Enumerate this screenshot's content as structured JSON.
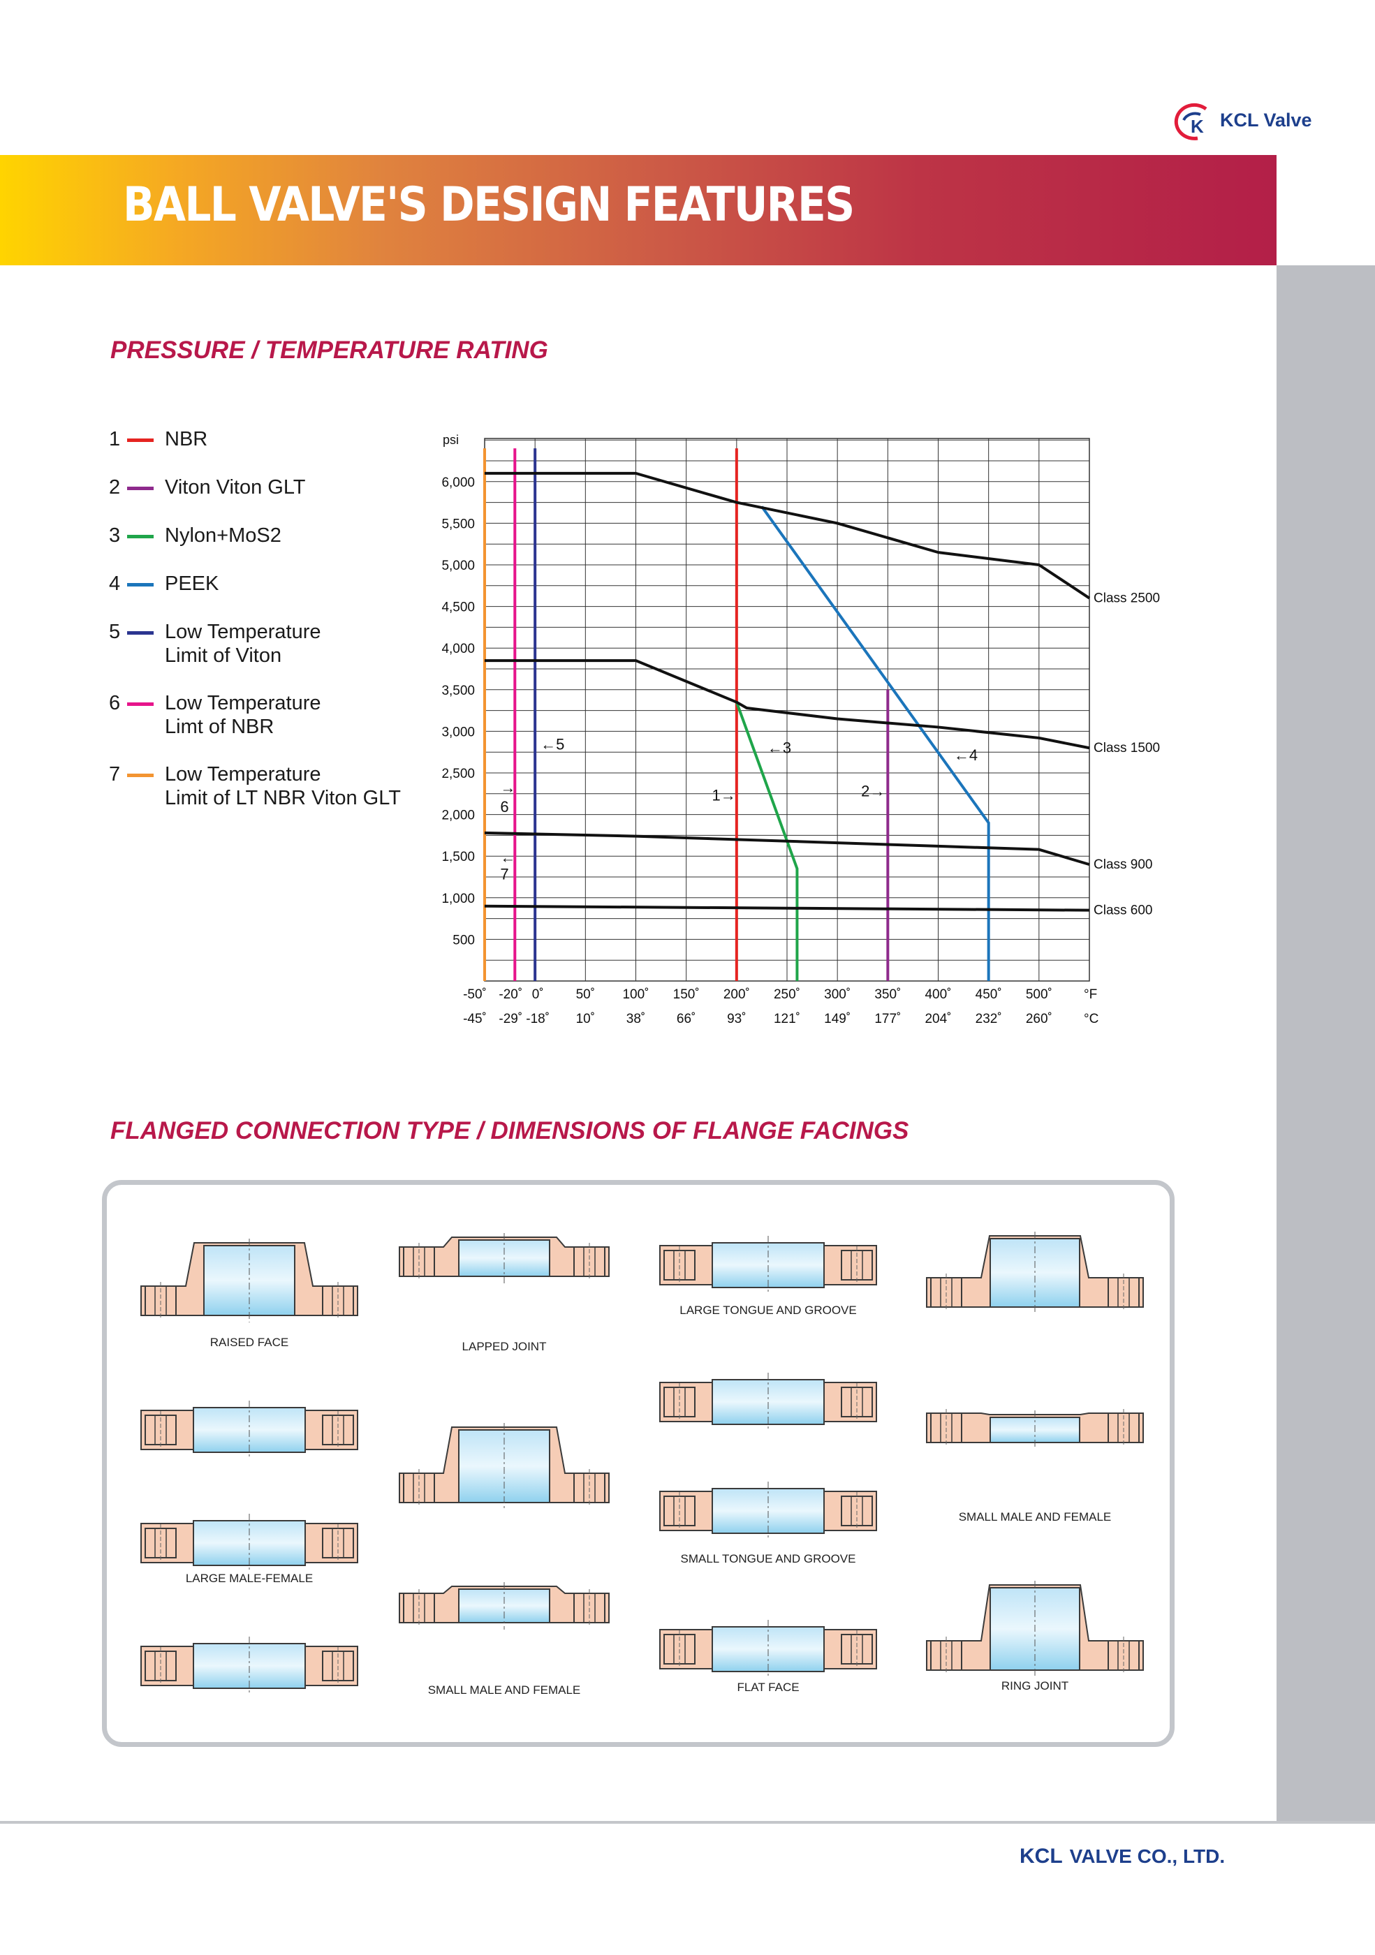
{
  "brand": {
    "logo_text": "KCL Valve",
    "footer_kcl": "KCL",
    "footer_rest": "VALVE CO., LTD."
  },
  "colors": {
    "brand_blue": "#1d3f8c",
    "title_red": "#b8184a",
    "nbr": "#e52421",
    "viton": "#8e2a8c",
    "nylon": "#1fa54a",
    "peek": "#1b75bb",
    "viton_low": "#2b3590",
    "nbr_low": "#e6148b",
    "lt_nbr_low": "#f39431"
  },
  "header": {
    "title": "BALL VALVE'S DESIGN FEATURES"
  },
  "sections": {
    "pressure_title": "PRESSURE / TEMPERATURE RATING",
    "flange_title": "FLANGED CONNECTION TYPE / DIMENSIONS OF FLANGE FACINGS"
  },
  "legend": [
    {
      "num": "1",
      "label": "NBR",
      "color_key": "nbr"
    },
    {
      "num": "2",
      "label": "Viton Viton GLT",
      "color_key": "viton"
    },
    {
      "num": "3",
      "label": "Nylon+MoS2",
      "color_key": "nylon"
    },
    {
      "num": "4",
      "label": "PEEK",
      "color_key": "peek"
    },
    {
      "num": "5",
      "label": "Low Temperature\nLimit of Viton",
      "color_key": "viton_low"
    },
    {
      "num": "6",
      "label": "Low Temperature\nLimt of NBR",
      "color_key": "nbr_low"
    },
    {
      "num": "7",
      "label": "Low Temperature\nLimit of LT NBR Viton GLT",
      "color_key": "lt_nbr_low"
    }
  ],
  "chart_data": {
    "type": "line",
    "title": "PRESSURE / TEMPERATURE RATING",
    "ylabel": "psi",
    "xunit_f": "°F",
    "xunit_c": "°C",
    "xlim": [
      -50,
      550
    ],
    "ylim": [
      0,
      6500
    ],
    "grid": true,
    "yticks": [
      {
        "v": 6000,
        "label": "6,000"
      },
      {
        "v": 5500,
        "label": "5,500"
      },
      {
        "v": 5000,
        "label": "5,000"
      },
      {
        "v": 4500,
        "label": "4,500"
      },
      {
        "v": 4000,
        "label": "4,000"
      },
      {
        "v": 3500,
        "label": "3,500"
      },
      {
        "v": 3000,
        "label": "3,000"
      },
      {
        "v": 2500,
        "label": "2,500"
      },
      {
        "v": 2000,
        "label": "2,000"
      },
      {
        "v": 1500,
        "label": "1,500"
      },
      {
        "v": 1000,
        "label": "1,000"
      },
      {
        "v": 500,
        "label": "500"
      }
    ],
    "xticks": [
      {
        "f": -50,
        "label_f": "-50˚",
        "label_c": "-45˚"
      },
      {
        "f": -20,
        "label_f": "-20˚",
        "label_c": "-29˚"
      },
      {
        "f": 0,
        "label_f": "0˚",
        "label_c": "-18˚"
      },
      {
        "f": 50,
        "label_f": "50˚",
        "label_c": "10˚"
      },
      {
        "f": 100,
        "label_f": "100˚",
        "label_c": "38˚"
      },
      {
        "f": 150,
        "label_f": "150˚",
        "label_c": "66˚"
      },
      {
        "f": 200,
        "label_f": "200˚",
        "label_c": "93˚"
      },
      {
        "f": 250,
        "label_f": "250˚",
        "label_c": "121˚"
      },
      {
        "f": 300,
        "label_f": "300˚",
        "label_c": "149˚"
      },
      {
        "f": 350,
        "label_f": "350˚",
        "label_c": "177˚"
      },
      {
        "f": 400,
        "label_f": "400˚",
        "label_c": "204˚"
      },
      {
        "f": 450,
        "label_f": "450˚",
        "label_c": "232˚"
      },
      {
        "f": 500,
        "label_f": "500˚",
        "label_c": "260˚"
      }
    ],
    "gridlines_f": [
      -50,
      0,
      50,
      100,
      150,
      200,
      250,
      300,
      350,
      400,
      450,
      500,
      550
    ],
    "classes": [
      {
        "name": "Class 2500",
        "points": [
          [
            -50,
            6100
          ],
          [
            100,
            6100
          ],
          [
            200,
            5750
          ],
          [
            300,
            5500
          ],
          [
            400,
            5150
          ],
          [
            500,
            5000
          ],
          [
            550,
            4600
          ]
        ]
      },
      {
        "name": "Class 1500",
        "points": [
          [
            -50,
            3850
          ],
          [
            100,
            3850
          ],
          [
            200,
            3350
          ],
          [
            210,
            3280
          ],
          [
            300,
            3150
          ],
          [
            400,
            3050
          ],
          [
            500,
            2920
          ],
          [
            550,
            2800
          ]
        ]
      },
      {
        "name": "Class 900",
        "points": [
          [
            -50,
            1780
          ],
          [
            100,
            1740
          ],
          [
            200,
            1700
          ],
          [
            300,
            1660
          ],
          [
            400,
            1620
          ],
          [
            500,
            1580
          ],
          [
            550,
            1400
          ]
        ]
      },
      {
        "name": "Class 600",
        "points": [
          [
            -50,
            900
          ],
          [
            550,
            850
          ]
        ]
      }
    ],
    "seats": [
      {
        "num": "1",
        "name": "NBR",
        "color_key": "nbr",
        "points": [
          [
            200,
            0
          ],
          [
            200,
            6400
          ]
        ]
      },
      {
        "num": "2",
        "name": "Viton Viton GLT",
        "color_key": "viton",
        "points": [
          [
            350,
            0
          ],
          [
            350,
            3500
          ]
        ]
      },
      {
        "num": "3",
        "name": "Nylon+MoS2",
        "color_key": "nylon",
        "points": [
          [
            200,
            3350
          ],
          [
            260,
            1350
          ],
          [
            260,
            0
          ]
        ]
      },
      {
        "num": "4",
        "name": "PEEK",
        "color_key": "peek",
        "points": [
          [
            225,
            5700
          ],
          [
            450,
            1900
          ],
          [
            450,
            0
          ]
        ]
      },
      {
        "num": "5",
        "name": "Low Temperature Limit of Viton",
        "color_key": "viton_low",
        "points": [
          [
            0,
            0
          ],
          [
            0,
            6400
          ]
        ]
      },
      {
        "num": "6",
        "name": "Low Temperature Limt of NBR",
        "color_key": "nbr_low",
        "points": [
          [
            -20,
            0
          ],
          [
            -20,
            6400
          ]
        ]
      },
      {
        "num": "7",
        "name": "Low Temperature Limit of LT NBR Viton GLT",
        "color_key": "lt_nbr_low",
        "points": [
          [
            -50,
            0
          ],
          [
            -50,
            6400
          ]
        ]
      }
    ],
    "annotations": [
      {
        "text": "←5",
        "x": 0,
        "y": 2780
      },
      {
        "text": "←3",
        "x": 225,
        "y": 2740
      },
      {
        "text": "←4",
        "x": 410,
        "y": 2650
      },
      {
        "text": "1→",
        "x": 170,
        "y": 2170
      },
      {
        "text": "2→",
        "x": 318,
        "y": 2220
      },
      {
        "text": "→",
        "x": -40,
        "y": 2260
      },
      {
        "text": "6",
        "x": -40,
        "y": 2030
      },
      {
        "text": "←",
        "x": -40,
        "y": 1420
      },
      {
        "text": "7",
        "x": -40,
        "y": 1220
      }
    ]
  },
  "flange_labels": {
    "raised_face": "RAISED FACE",
    "lapped_joint": "LAPPED JOINT",
    "large_tongue": "LARGE TONGUE AND GROOVE",
    "large_male_female": "LARGE MALE-FEMALE",
    "small_tongue": "SMALL TONGUE AND GROOVE",
    "small_male_female_right": "SMALL MALE AND FEMALE",
    "small_male_female_mid": "SMALL MALE AND FEMALE",
    "flat_face": "FLAT FACE",
    "ring_joint": "RING JOINT"
  }
}
